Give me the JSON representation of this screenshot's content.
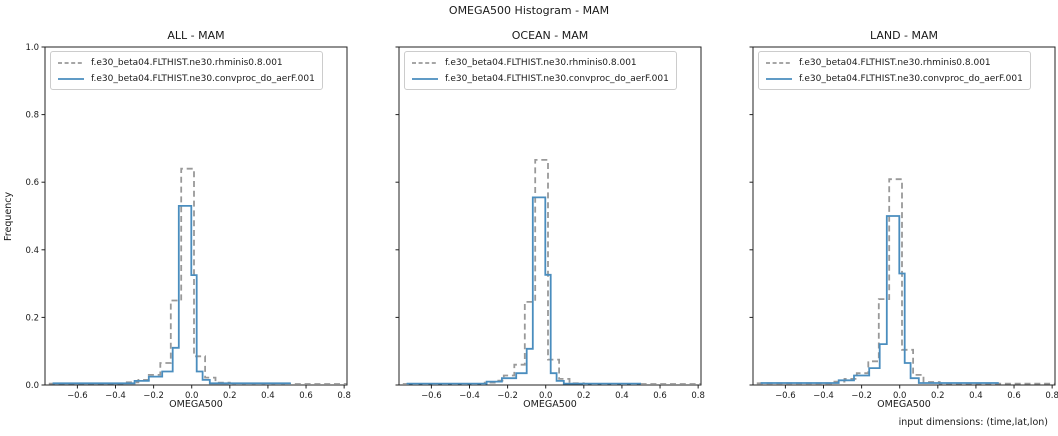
{
  "figure": {
    "title": "OMEGA500 Histogram - MAM",
    "footer": "input dimensions: (time,lat,lon)",
    "background": "#ffffff",
    "text_color": "#1a1a1a",
    "spine_color": "#222222"
  },
  "chart_data": [
    {
      "type": "line",
      "subtype": "step-histogram",
      "title": "ALL - MAM",
      "xlabel": "OMEGA500",
      "ylabel": "Frequency",
      "xlim": [
        -0.77,
        0.815
      ],
      "ylim": [
        0,
        1.0
      ],
      "xticks": [
        -0.6,
        -0.4,
        -0.2,
        0.0,
        0.2,
        0.4,
        0.6,
        0.8
      ],
      "yticks": [
        0.0,
        0.2,
        0.4,
        0.6,
        0.8,
        1.0
      ],
      "show_ytick_labels": true,
      "grid": false,
      "legend_position": "upper-left",
      "series": [
        {
          "name": "f.e30_beta04.FLTHIST.ne30.rhminis0.8.001",
          "color": "#999999",
          "dash": true,
          "points": [
            [
              -0.75,
              0.004
            ],
            [
              -0.35,
              0.004
            ],
            [
              -0.35,
              0.008
            ],
            [
              -0.28,
              0.008
            ],
            [
              -0.28,
              0.015
            ],
            [
              -0.225,
              0.015
            ],
            [
              -0.225,
              0.03
            ],
            [
              -0.165,
              0.03
            ],
            [
              -0.165,
              0.065
            ],
            [
              -0.11,
              0.065
            ],
            [
              -0.11,
              0.25
            ],
            [
              -0.055,
              0.25
            ],
            [
              -0.055,
              0.64
            ],
            [
              0.012,
              0.64
            ],
            [
              0.012,
              0.085
            ],
            [
              0.07,
              0.085
            ],
            [
              0.07,
              0.022
            ],
            [
              0.125,
              0.022
            ],
            [
              0.125,
              0.007
            ],
            [
              0.2,
              0.007
            ],
            [
              0.2,
              0.003
            ],
            [
              0.812,
              0.003
            ]
          ]
        },
        {
          "name": "f.e30_beta04.FLTHIST.ne30.convproc_do_aerF.001",
          "color": "#4a8dbe",
          "dash": false,
          "points": [
            [
              -0.73,
              0.005
            ],
            [
              -0.3,
              0.005
            ],
            [
              -0.3,
              0.012
            ],
            [
              -0.225,
              0.012
            ],
            [
              -0.225,
              0.025
            ],
            [
              -0.155,
              0.025
            ],
            [
              -0.155,
              0.04
            ],
            [
              -0.1,
              0.04
            ],
            [
              -0.1,
              0.11
            ],
            [
              -0.068,
              0.11
            ],
            [
              -0.068,
              0.53
            ],
            [
              -0.002,
              0.53
            ],
            [
              -0.002,
              0.325
            ],
            [
              0.026,
              0.325
            ],
            [
              0.026,
              0.04
            ],
            [
              0.057,
              0.04
            ],
            [
              0.057,
              0.015
            ],
            [
              0.095,
              0.015
            ],
            [
              0.095,
              0.005
            ],
            [
              0.52,
              0.005
            ]
          ]
        }
      ]
    },
    {
      "type": "line",
      "subtype": "step-histogram",
      "title": "OCEAN - MAM",
      "xlabel": "OMEGA500",
      "ylabel": "",
      "xlim": [
        -0.77,
        0.815
      ],
      "ylim": [
        0,
        1.0
      ],
      "xticks": [
        -0.6,
        -0.4,
        -0.2,
        0.0,
        0.2,
        0.4,
        0.6,
        0.8
      ],
      "yticks": [
        0.0,
        0.2,
        0.4,
        0.6,
        0.8,
        1.0
      ],
      "show_ytick_labels": false,
      "grid": false,
      "legend_position": "upper-left",
      "series": [
        {
          "name": "f.e30_beta04.FLTHIST.ne30.rhminis0.8.001",
          "color": "#999999",
          "dash": true,
          "points": [
            [
              -0.75,
              0.003
            ],
            [
              -0.32,
              0.003
            ],
            [
              -0.32,
              0.007
            ],
            [
              -0.26,
              0.007
            ],
            [
              -0.26,
              0.013
            ],
            [
              -0.22,
              0.013
            ],
            [
              -0.22,
              0.028
            ],
            [
              -0.165,
              0.028
            ],
            [
              -0.165,
              0.06
            ],
            [
              -0.11,
              0.06
            ],
            [
              -0.11,
              0.246
            ],
            [
              -0.055,
              0.246
            ],
            [
              -0.055,
              0.666
            ],
            [
              0.012,
              0.666
            ],
            [
              0.012,
              0.075
            ],
            [
              0.07,
              0.075
            ],
            [
              0.07,
              0.018
            ],
            [
              0.125,
              0.018
            ],
            [
              0.125,
              0.005
            ],
            [
              0.2,
              0.005
            ],
            [
              0.2,
              0.003
            ],
            [
              0.812,
              0.003
            ]
          ]
        },
        {
          "name": "f.e30_beta04.FLTHIST.ne30.convproc_do_aerF.001",
          "color": "#4a8dbe",
          "dash": false,
          "points": [
            [
              -0.73,
              0.004
            ],
            [
              -0.31,
              0.004
            ],
            [
              -0.31,
              0.01
            ],
            [
              -0.23,
              0.01
            ],
            [
              -0.23,
              0.02
            ],
            [
              -0.155,
              0.02
            ],
            [
              -0.155,
              0.035
            ],
            [
              -0.1,
              0.035
            ],
            [
              -0.1,
              0.107
            ],
            [
              -0.068,
              0.107
            ],
            [
              -0.068,
              0.555
            ],
            [
              -0.002,
              0.555
            ],
            [
              -0.002,
              0.326
            ],
            [
              0.026,
              0.326
            ],
            [
              0.026,
              0.035
            ],
            [
              0.057,
              0.035
            ],
            [
              0.057,
              0.012
            ],
            [
              0.095,
              0.012
            ],
            [
              0.095,
              0.004
            ],
            [
              0.5,
              0.004
            ]
          ]
        }
      ]
    },
    {
      "type": "line",
      "subtype": "step-histogram",
      "title": "LAND - MAM",
      "xlabel": "OMEGA500",
      "ylabel": "",
      "xlim": [
        -0.77,
        0.815
      ],
      "ylim": [
        0,
        1.0
      ],
      "xticks": [
        -0.6,
        -0.4,
        -0.2,
        0.0,
        0.2,
        0.4,
        0.6,
        0.8
      ],
      "yticks": [
        0.0,
        0.2,
        0.4,
        0.6,
        0.8,
        1.0
      ],
      "show_ytick_labels": false,
      "grid": false,
      "legend_position": "upper-left",
      "series": [
        {
          "name": "f.e30_beta04.FLTHIST.ne30.rhminis0.8.001",
          "color": "#999999",
          "dash": true,
          "points": [
            [
              -0.75,
              0.005
            ],
            [
              -0.36,
              0.005
            ],
            [
              -0.36,
              0.01
            ],
            [
              -0.29,
              0.01
            ],
            [
              -0.29,
              0.018
            ],
            [
              -0.225,
              0.018
            ],
            [
              -0.225,
              0.035
            ],
            [
              -0.165,
              0.035
            ],
            [
              -0.165,
              0.07
            ],
            [
              -0.11,
              0.07
            ],
            [
              -0.11,
              0.254
            ],
            [
              -0.055,
              0.254
            ],
            [
              -0.055,
              0.609
            ],
            [
              0.012,
              0.609
            ],
            [
              0.012,
              0.104
            ],
            [
              0.07,
              0.104
            ],
            [
              0.07,
              0.03
            ],
            [
              0.125,
              0.03
            ],
            [
              0.125,
              0.009
            ],
            [
              0.21,
              0.009
            ],
            [
              0.21,
              0.004
            ],
            [
              0.812,
              0.004
            ]
          ]
        },
        {
          "name": "f.e30_beta04.FLTHIST.ne30.convproc_do_aerF.001",
          "color": "#4a8dbe",
          "dash": false,
          "points": [
            [
              -0.73,
              0.006
            ],
            [
              -0.32,
              0.006
            ],
            [
              -0.32,
              0.014
            ],
            [
              -0.24,
              0.014
            ],
            [
              -0.24,
              0.028
            ],
            [
              -0.16,
              0.028
            ],
            [
              -0.16,
              0.05
            ],
            [
              -0.105,
              0.05
            ],
            [
              -0.105,
              0.121
            ],
            [
              -0.068,
              0.121
            ],
            [
              -0.068,
              0.5
            ],
            [
              -0.002,
              0.5
            ],
            [
              -0.002,
              0.33
            ],
            [
              0.026,
              0.33
            ],
            [
              0.026,
              0.065
            ],
            [
              0.057,
              0.065
            ],
            [
              0.057,
              0.02
            ],
            [
              0.1,
              0.02
            ],
            [
              0.1,
              0.006
            ],
            [
              0.52,
              0.006
            ]
          ]
        }
      ]
    }
  ]
}
